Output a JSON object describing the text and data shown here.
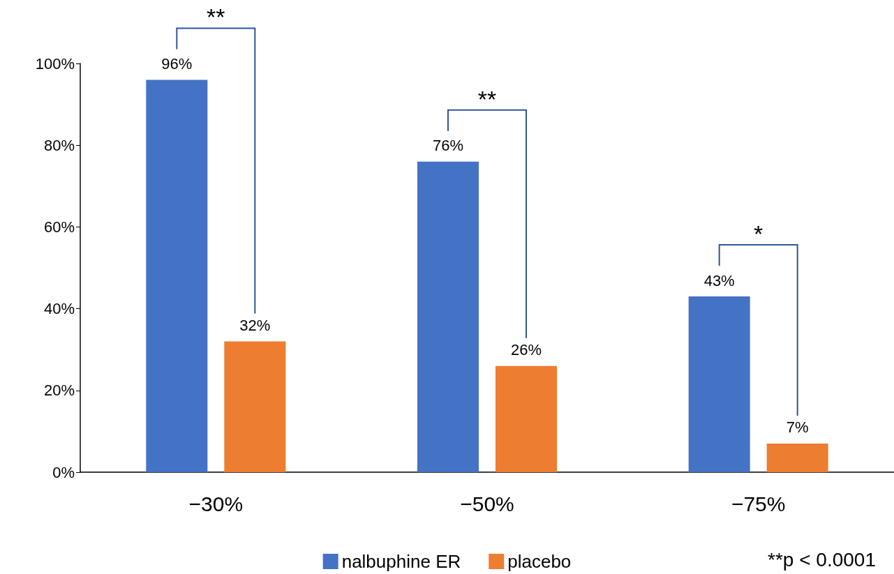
{
  "chart_data": {
    "type": "bar",
    "categories": [
      "−30%",
      "−50%",
      "−75%"
    ],
    "series": [
      {
        "name": "nalbuphine ER",
        "color": "#4472c4",
        "values": [
          96,
          76,
          43
        ]
      },
      {
        "name": "placebo",
        "color": "#ed7d31",
        "values": [
          32,
          26,
          7
        ]
      }
    ],
    "ylim": [
      0,
      100
    ],
    "yticks": [
      {
        "value": 0,
        "label": "0%"
      },
      {
        "value": 20,
        "label": "20%"
      },
      {
        "value": 40,
        "label": "40%"
      },
      {
        "value": 60,
        "label": "60%"
      },
      {
        "value": 80,
        "label": "80%"
      },
      {
        "value": 100,
        "label": "100%"
      }
    ],
    "value_labels": [
      [
        "96%",
        "76%",
        "43%"
      ],
      [
        "32%",
        "26%",
        "7%"
      ]
    ],
    "grid": false,
    "legend": "bottom",
    "annotations": [
      "**",
      "**",
      "*",
      "**p < 0.0001"
    ]
  }
}
